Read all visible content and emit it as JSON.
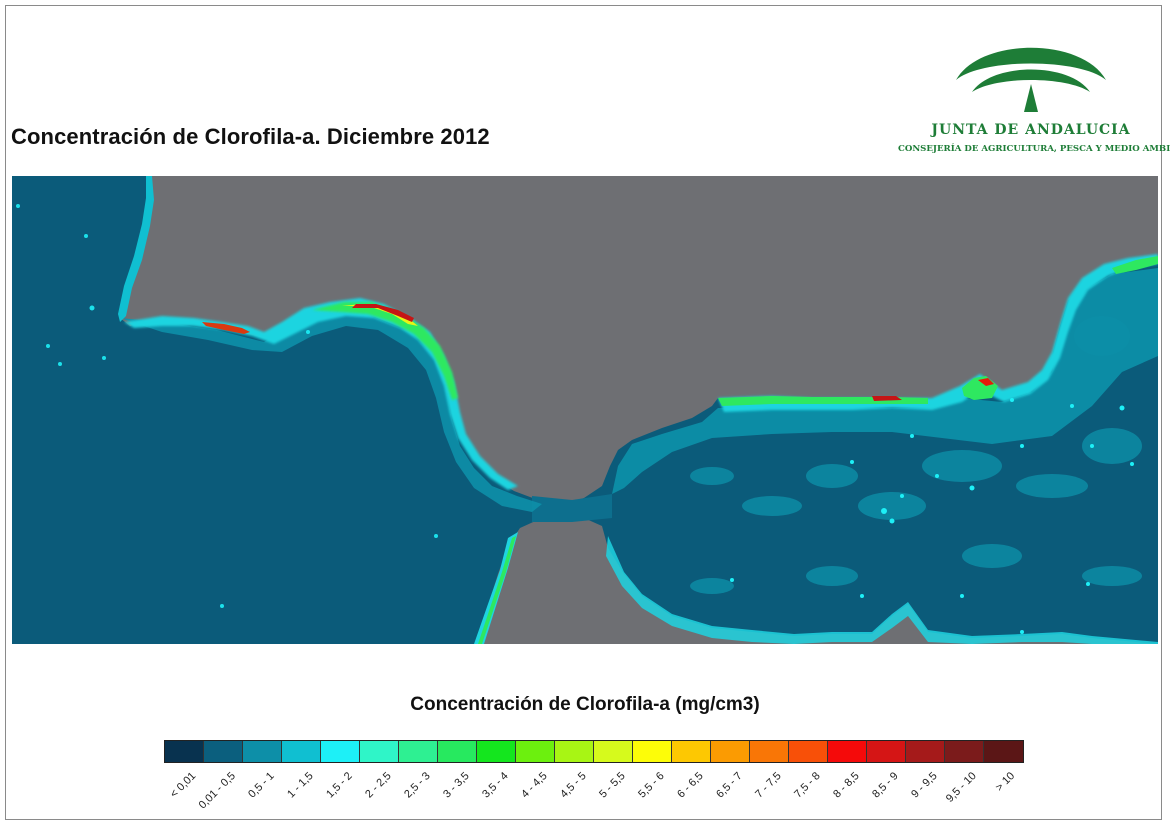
{
  "title": "Concentración de Clorofila-a. Diciembre 2012",
  "logo": {
    "name": "JUNTA DE ANDALUCIA",
    "subtitle": "CONSEJERÍA DE AGRICULTURA, PESCA Y MEDIO AMBIENTE",
    "color": "#1e7d37"
  },
  "map": {
    "land_color": "#6e6f73",
    "sea_color": "#0b5b7a"
  },
  "legend": {
    "title": "Concentración de Clorofila-a (mg/cm3)",
    "classes": [
      {
        "label": "< 0,01",
        "color": "#08324f"
      },
      {
        "label": "0,01 - 0,5",
        "color": "#0b5f7e"
      },
      {
        "label": "0,5 - 1",
        "color": "#0d8fa8"
      },
      {
        "label": "1 - 1,5",
        "color": "#10bfd1"
      },
      {
        "label": "1,5 - 2",
        "color": "#1df0f7"
      },
      {
        "label": "2 - 2,5",
        "color": "#2ff5c8"
      },
      {
        "label": "2,5 - 3",
        "color": "#2ef092"
      },
      {
        "label": "3 - 3,5",
        "color": "#27e95f"
      },
      {
        "label": "3,5 - 4",
        "color": "#14e61e"
      },
      {
        "label": "4 - 4,5",
        "color": "#6cf00e"
      },
      {
        "label": "4,5 - 5",
        "color": "#a8f514"
      },
      {
        "label": "5 - 5,5",
        "color": "#d6fa1c"
      },
      {
        "label": "5,5 - 6",
        "color": "#fdfd08"
      },
      {
        "label": "6 - 6,5",
        "color": "#fdc802"
      },
      {
        "label": "6,5 - 7",
        "color": "#fb9b02"
      },
      {
        "label": "7 - 7,5",
        "color": "#f97606"
      },
      {
        "label": "7,5 - 8",
        "color": "#f85008"
      },
      {
        "label": "8 - 8,5",
        "color": "#f50a0a"
      },
      {
        "label": "8,5 - 9",
        "color": "#d51515"
      },
      {
        "label": "9 - 9,5",
        "color": "#a51a1a"
      },
      {
        "label": "9,5 - 10",
        "color": "#7b1b1b"
      },
      {
        "label": "> 10",
        "color": "#5b1616"
      }
    ]
  }
}
